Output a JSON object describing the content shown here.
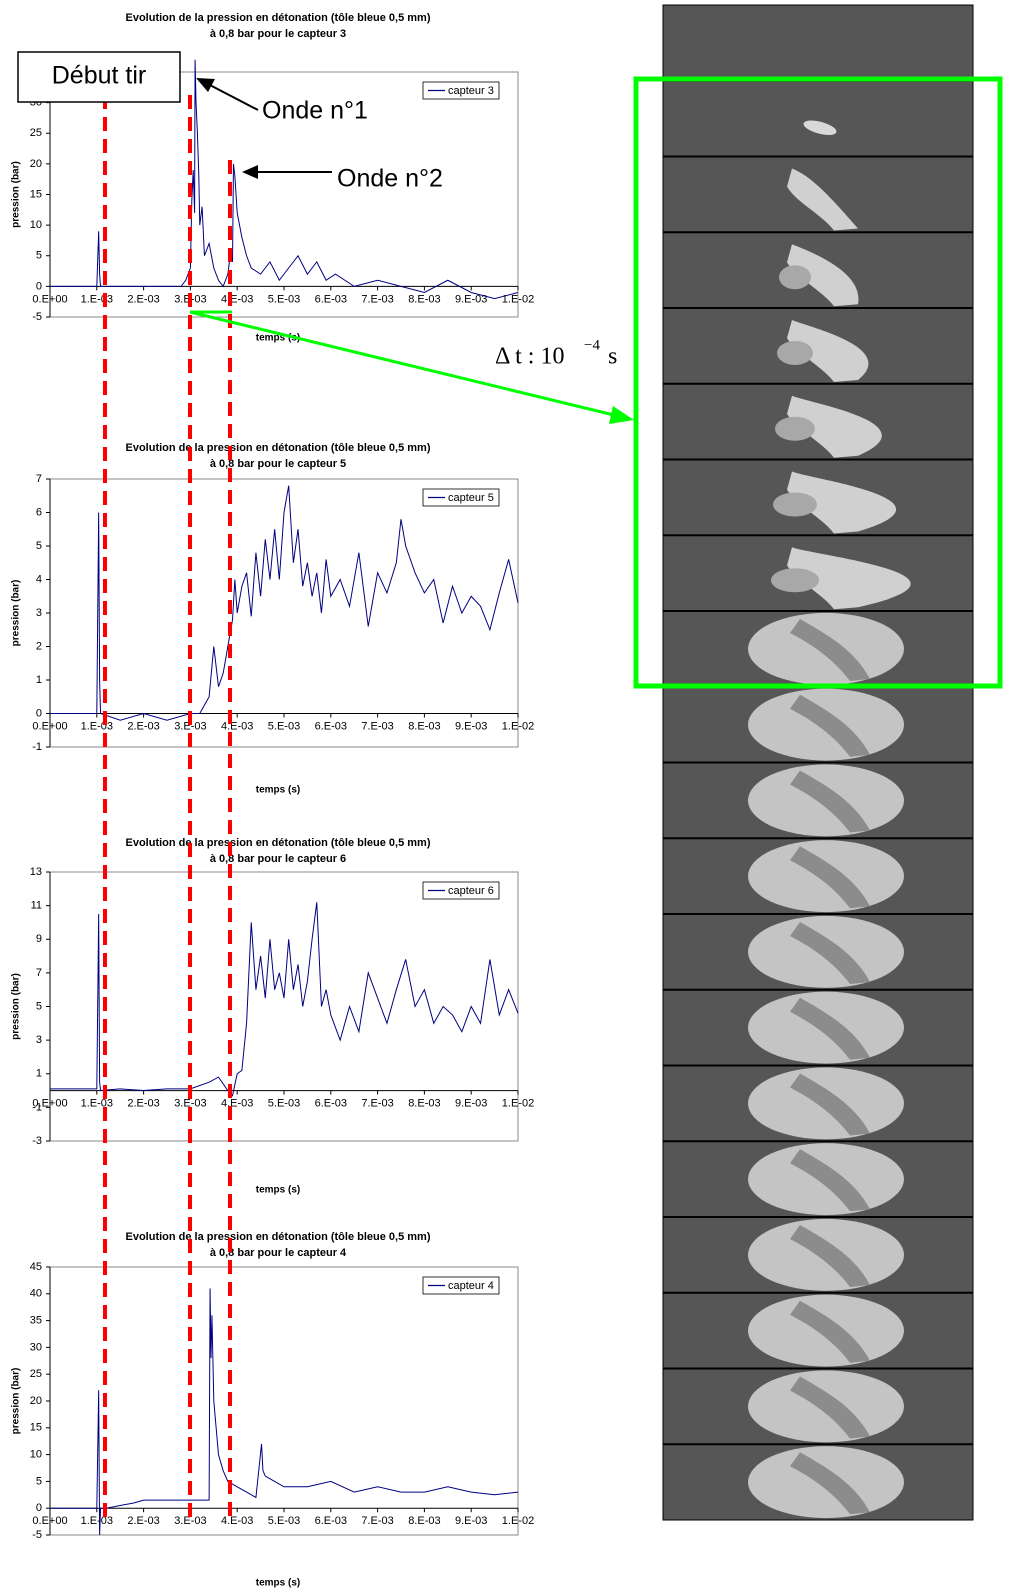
{
  "chart_data": [
    {
      "type": "line",
      "title": "Evolution de la pression en détonation (tôle bleue 0,5 mm)",
      "subtitle": "à 0,8 bar pour le capteur 3",
      "x_label": "temps (s)",
      "y_label": "pression (bar)",
      "legend": "upper right",
      "grid": false,
      "xlim": [
        0,
        0.01
      ],
      "ylim": [
        -5,
        35
      ],
      "xticks": [
        {
          "value": 0,
          "label": "0.E+00"
        },
        {
          "value": 0.001,
          "label": "1.E-03"
        },
        {
          "value": 0.002,
          "label": "2.E-03"
        },
        {
          "value": 0.003,
          "label": "3.E-03"
        },
        {
          "value": 0.004,
          "label": "4.E-03"
        },
        {
          "value": 0.005,
          "label": "5.E-03"
        },
        {
          "value": 0.006,
          "label": "6.E-03"
        },
        {
          "value": 0.007,
          "label": "7.E-03"
        },
        {
          "value": 0.008,
          "label": "8.E-03"
        },
        {
          "value": 0.009,
          "label": "9.E-03"
        },
        {
          "value": 0.01,
          "label": "1.E-02"
        }
      ],
      "yticks": [
        -5,
        0,
        5,
        10,
        15,
        20,
        25,
        30
      ],
      "x": [
        0,
        0.001,
        0.00104,
        0.00106,
        0.00108,
        0.0011,
        0.0028,
        0.0029,
        0.003,
        0.00303,
        0.00306,
        0.00309,
        0.0031,
        0.00312,
        0.00315,
        0.00318,
        0.0032,
        0.00325,
        0.0033,
        0.0034,
        0.0035,
        0.0036,
        0.0037,
        0.0038,
        0.00385,
        0.0039,
        0.00392,
        0.00395,
        0.004,
        0.0041,
        0.0042,
        0.0043,
        0.0045,
        0.0047,
        0.0049,
        0.0051,
        0.0053,
        0.0055,
        0.0057,
        0.0059,
        0.0061,
        0.0065,
        0.007,
        0.0075,
        0.008,
        0.0085,
        0.009,
        0.0095,
        0.01
      ],
      "series": [
        {
          "name": "capteur 3",
          "color": "#000080",
          "values": [
            0,
            0,
            9,
            2,
            0,
            0,
            0,
            1,
            3,
            14,
            19,
            12,
            37,
            30,
            25,
            18,
            10,
            13,
            5,
            7,
            3,
            1,
            0,
            2,
            5,
            4,
            20,
            18,
            12,
            8,
            5,
            3,
            2,
            4,
            1,
            3,
            5,
            2,
            4,
            1,
            2,
            0,
            1,
            0,
            -1,
            1,
            -1,
            -2,
            -1
          ]
        }
      ],
      "annotations": [
        "Début tir",
        "Onde n°1",
        "Onde n°2"
      ]
    },
    {
      "type": "line",
      "title": "Evolution de la pression en détonation (tôle bleue 0,5 mm)",
      "subtitle": "à 0,8 bar pour le capteur 5",
      "x_label": "temps (s)",
      "y_label": "pression (bar)",
      "legend": "upper right",
      "grid": false,
      "xlim": [
        0,
        0.01
      ],
      "ylim": [
        -1,
        7
      ],
      "xticks": [
        {
          "value": 0,
          "label": "0.E+00"
        },
        {
          "value": 0.001,
          "label": "1.E-03"
        },
        {
          "value": 0.002,
          "label": "2.E-03"
        },
        {
          "value": 0.003,
          "label": "3.E-03"
        },
        {
          "value": 0.004,
          "label": "4.E-03"
        },
        {
          "value": 0.005,
          "label": "5.E-03"
        },
        {
          "value": 0.006,
          "label": "6.E-03"
        },
        {
          "value": 0.007,
          "label": "7.E-03"
        },
        {
          "value": 0.008,
          "label": "8.E-03"
        },
        {
          "value": 0.009,
          "label": "9.E-03"
        },
        {
          "value": 0.01,
          "label": "1.E-02"
        }
      ],
      "yticks": [
        -1,
        0,
        1,
        2,
        3,
        4,
        5,
        6,
        7
      ],
      "x": [
        0,
        0.001,
        0.00104,
        0.00106,
        0.00108,
        0.0015,
        0.002,
        0.0025,
        0.003,
        0.0032,
        0.0034,
        0.0035,
        0.0036,
        0.0037,
        0.0038,
        0.0039,
        0.00395,
        0.004,
        0.0041,
        0.0042,
        0.0043,
        0.0044,
        0.0045,
        0.0046,
        0.0047,
        0.0048,
        0.0049,
        0.005,
        0.0051,
        0.0052,
        0.0053,
        0.0054,
        0.0055,
        0.0056,
        0.0057,
        0.0058,
        0.0059,
        0.006,
        0.0062,
        0.0064,
        0.0066,
        0.0068,
        0.007,
        0.0072,
        0.0074,
        0.0075,
        0.0076,
        0.0078,
        0.008,
        0.0082,
        0.0084,
        0.0086,
        0.0088,
        0.009,
        0.0092,
        0.0094,
        0.0096,
        0.0098,
        0.01
      ],
      "series": [
        {
          "name": "capteur 5",
          "color": "#000080",
          "values": [
            0,
            0,
            6,
            1,
            0,
            -0.2,
            0,
            -0.2,
            0,
            0,
            0.5,
            2,
            0.8,
            1.2,
            2,
            2.8,
            4,
            3,
            3.8,
            4.2,
            2.9,
            4.8,
            3.5,
            5.2,
            4,
            5.5,
            4,
            6,
            6.8,
            4.5,
            5.5,
            3.8,
            4.5,
            3.5,
            4.2,
            3,
            4.6,
            3.5,
            4,
            3.2,
            4.8,
            2.6,
            4.2,
            3.6,
            4.5,
            5.8,
            5,
            4.2,
            3.6,
            4,
            2.7,
            3.8,
            3,
            3.5,
            3.2,
            2.5,
            3.6,
            4.6,
            3.3
          ]
        }
      ]
    },
    {
      "type": "line",
      "title": "Evolution de la pression en détonation (tôle bleue 0,5 mm)",
      "subtitle": "à 0,8 bar pour le capteur 6",
      "x_label": "temps (s)",
      "y_label": "pression (bar)",
      "legend": "upper right",
      "grid": false,
      "xlim": [
        0,
        0.01
      ],
      "ylim": [
        -3,
        13
      ],
      "xticks": [
        {
          "value": 0,
          "label": "0.E+00"
        },
        {
          "value": 0.001,
          "label": "1.E-03"
        },
        {
          "value": 0.002,
          "label": "2.E-03"
        },
        {
          "value": 0.003,
          "label": "3.E-03"
        },
        {
          "value": 0.004,
          "label": "4.E-03"
        },
        {
          "value": 0.005,
          "label": "5.E-03"
        },
        {
          "value": 0.006,
          "label": "6.E-03"
        },
        {
          "value": 0.007,
          "label": "7.E-03"
        },
        {
          "value": 0.008,
          "label": "8.E-03"
        },
        {
          "value": 0.009,
          "label": "9.E-03"
        },
        {
          "value": 0.01,
          "label": "1.E-02"
        }
      ],
      "yticks": [
        -3,
        -1,
        1,
        3,
        5,
        7,
        9,
        11,
        13
      ],
      "x": [
        0,
        0.001,
        0.00104,
        0.00106,
        0.00108,
        0.0015,
        0.002,
        0.0025,
        0.003,
        0.0034,
        0.0036,
        0.0038,
        0.0039,
        0.004,
        0.0041,
        0.0042,
        0.0043,
        0.0044,
        0.0045,
        0.0046,
        0.0047,
        0.0048,
        0.0049,
        0.005,
        0.0051,
        0.0052,
        0.0053,
        0.0054,
        0.0055,
        0.0056,
        0.0057,
        0.0058,
        0.0059,
        0.006,
        0.0062,
        0.0064,
        0.0066,
        0.0068,
        0.007,
        0.0072,
        0.0074,
        0.0076,
        0.0078,
        0.008,
        0.0082,
        0.0084,
        0.0086,
        0.0088,
        0.009,
        0.0092,
        0.0094,
        0.0096,
        0.0098,
        0.01
      ],
      "series": [
        {
          "name": "capteur 6",
          "color": "#000080",
          "values": [
            0.1,
            0.1,
            10.5,
            0.5,
            0,
            0.1,
            0,
            0.1,
            0.1,
            0.5,
            0.8,
            0,
            -0.3,
            1,
            1.2,
            4,
            10,
            6,
            8,
            5.5,
            9,
            6,
            7,
            5.5,
            9,
            6,
            7.5,
            5,
            6.5,
            9,
            11.2,
            5,
            6,
            4.5,
            3,
            5,
            3.5,
            7,
            5.5,
            4,
            6,
            7.8,
            5,
            6,
            4,
            5,
            4.5,
            3.5,
            5,
            4,
            7.8,
            4.5,
            6,
            4.6
          ]
        }
      ]
    },
    {
      "type": "line",
      "title": "Evolution de la pression en détonation (tôle bleue 0,5 mm)",
      "subtitle": "à 0,8 bar pour le capteur 4",
      "x_label": "temps (s)",
      "y_label": "pression (bar)",
      "legend": "upper right",
      "grid": false,
      "xlim": [
        0,
        0.01
      ],
      "ylim": [
        -5,
        45
      ],
      "xticks": [
        {
          "value": 0,
          "label": "0.E+00"
        },
        {
          "value": 0.001,
          "label": "1.E-03"
        },
        {
          "value": 0.002,
          "label": "2.E-03"
        },
        {
          "value": 0.003,
          "label": "3.E-03"
        },
        {
          "value": 0.004,
          "label": "4.E-03"
        },
        {
          "value": 0.005,
          "label": "5.E-03"
        },
        {
          "value": 0.006,
          "label": "6.E-03"
        },
        {
          "value": 0.007,
          "label": "7.E-03"
        },
        {
          "value": 0.008,
          "label": "8.E-03"
        },
        {
          "value": 0.009,
          "label": "9.E-03"
        },
        {
          "value": 0.01,
          "label": "1.E-02"
        }
      ],
      "yticks": [
        -5,
        0,
        5,
        10,
        15,
        20,
        25,
        30,
        35,
        40,
        45
      ],
      "x": [
        0,
        0.001,
        0.00104,
        0.00106,
        0.00108,
        0.0012,
        0.0015,
        0.0018,
        0.002,
        0.0034,
        0.00342,
        0.00344,
        0.00346,
        0.0035,
        0.00355,
        0.0036,
        0.0037,
        0.0038,
        0.004,
        0.0042,
        0.0044,
        0.00452,
        0.00455,
        0.0046,
        0.0048,
        0.005,
        0.0055,
        0.006,
        0.0065,
        0.007,
        0.0075,
        0.008,
        0.0085,
        0.009,
        0.0095,
        0.01
      ],
      "series": [
        {
          "name": "capteur 4",
          "color": "#000080",
          "values": [
            0,
            0,
            22,
            -5,
            0,
            0,
            0.5,
            1,
            1.5,
            1.5,
            41,
            28,
            36,
            20,
            15,
            10,
            7,
            5,
            4,
            3,
            2,
            12,
            7,
            6,
            5,
            4,
            4,
            5,
            3,
            4,
            3,
            3,
            4,
            3,
            2.5,
            3
          ]
        }
      ]
    }
  ],
  "frame_interval": {
    "text": "Δ t : 10",
    "exponent": "−4",
    "unit": "s"
  }
}
